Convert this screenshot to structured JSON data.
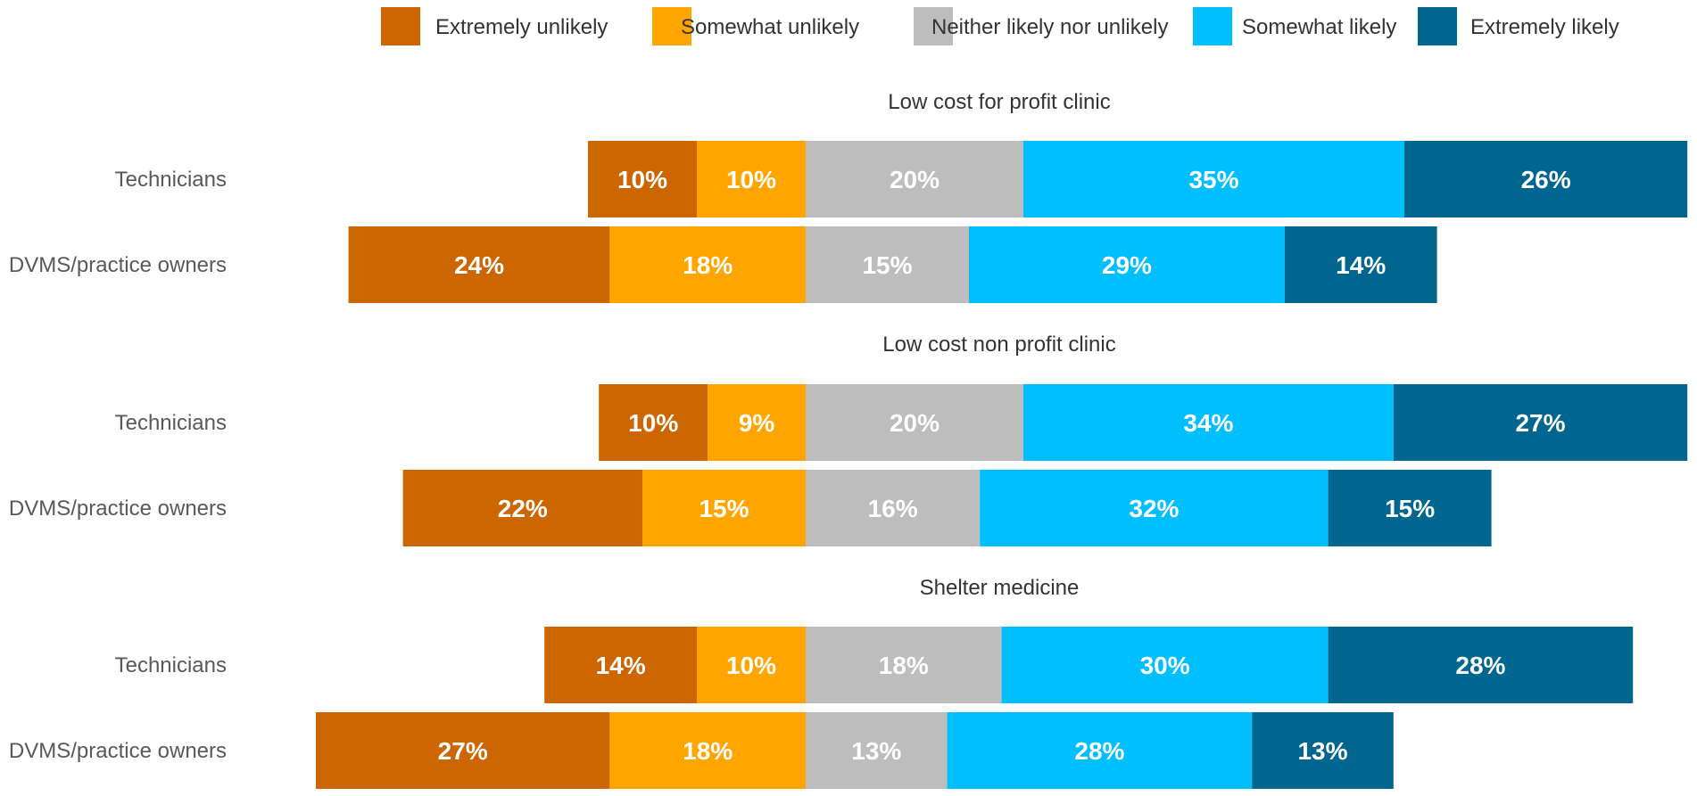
{
  "chart_data": {
    "type": "bar",
    "orientation": "horizontal-diverging-stacked",
    "value_suffix": "%",
    "legend_position": "top",
    "categories": [
      "Extremely unlikely",
      "Somewhat unlikely",
      "Neither likely nor unlikely",
      "Somewhat likely",
      "Extremely likely"
    ],
    "colors": [
      "#CC6600",
      "#FFA500",
      "#BDBDBD",
      "#00BFFF",
      "#006690"
    ],
    "groups": [
      {
        "title": "Low cost for profit clinic",
        "rows": [
          {
            "label": "Technicians",
            "values": [
              10,
              10,
              20,
              35,
              26
            ]
          },
          {
            "label": "DVMS/practice owners",
            "values": [
              24,
              18,
              15,
              29,
              14
            ]
          }
        ]
      },
      {
        "title": "Low cost non profit clinic",
        "rows": [
          {
            "label": "Technicians",
            "values": [
              10,
              9,
              20,
              34,
              27
            ]
          },
          {
            "label": "DVMS/practice owners",
            "values": [
              22,
              15,
              16,
              32,
              15
            ]
          }
        ]
      },
      {
        "title": "Shelter medicine",
        "rows": [
          {
            "label": "Technicians",
            "values": [
              14,
              10,
              18,
              30,
              28
            ]
          },
          {
            "label": "DVMS/practice owners",
            "values": [
              27,
              18,
              13,
              28,
              13
            ]
          }
        ]
      }
    ]
  }
}
